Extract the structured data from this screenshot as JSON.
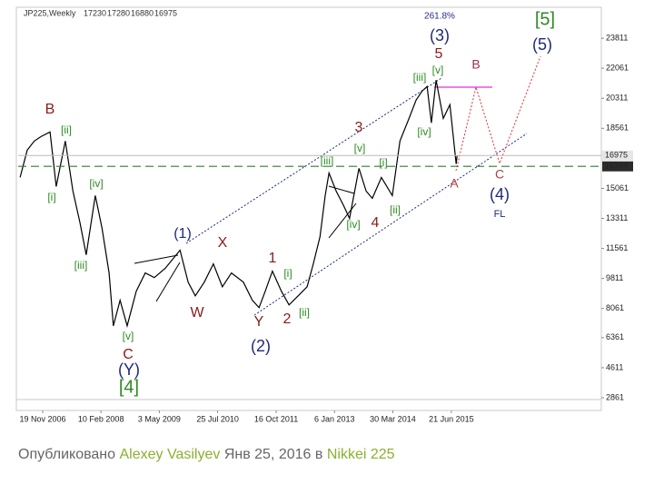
{
  "chart_data": {
    "type": "line",
    "header": {
      "symbol": "JP225,Weekly",
      "ohlc": [
        17230,
        17280,
        16880,
        16975
      ]
    },
    "color": "#000000",
    "x": [
      2006.41,
      2006.56,
      2006.71,
      2006.85,
      2007.04,
      2007.17,
      2007.36,
      2007.52,
      2007.67,
      2007.8,
      2007.99,
      2008.13,
      2008.28,
      2008.37,
      2008.51,
      2008.66,
      2008.85,
      2009.04,
      2009.23,
      2009.46,
      2009.77,
      2009.94,
      2010.09,
      2010.28,
      2010.47,
      2010.66,
      2010.85,
      2011.1,
      2011.29,
      2011.43,
      2011.56,
      2011.71,
      2011.9,
      2012.06,
      2012.25,
      2012.44,
      2012.57,
      2012.71,
      2012.82,
      2012.9,
      2013.05,
      2013.2,
      2013.33,
      2013.53,
      2013.68,
      2013.81,
      2014.0,
      2014.23,
      2014.39,
      2014.58,
      2014.73,
      2014.86,
      2014.96,
      2015.05,
      2015.15,
      2015.3,
      2015.44,
      2015.57,
      2015.59
    ],
    "values": [
      15700,
      17290,
      17820,
      18080,
      18350,
      15170,
      17820,
      14900,
      13050,
      11190,
      14640,
      12780,
      10130,
      7050,
      8540,
      7050,
      9070,
      10130,
      9860,
      10400,
      11460,
      9600,
      8800,
      9600,
      10660,
      9330,
      10130,
      9600,
      8540,
      8110,
      9070,
      10240,
      9070,
      8270,
      8800,
      9330,
      10660,
      12250,
      14640,
      15960,
      14900,
      14100,
      13310,
      16230,
      14900,
      14480,
      15700,
      14640,
      17820,
      19140,
      20210,
      20740,
      21000,
      18880,
      21370,
      19140,
      19940,
      16490,
      16975
    ],
    "xlim": [
      2006.37,
      2018.62
    ],
    "ylim": [
      2755,
      25510
    ],
    "xticks": [
      {
        "value": 2006.885,
        "label": "19 Nov 2006"
      },
      {
        "value": 2008.11,
        "label": "10 Feb 2008"
      },
      {
        "value": 2009.335,
        "label": "3 May 2009"
      },
      {
        "value": 2010.56,
        "label": "25 Jul 2010"
      },
      {
        "value": 2011.79,
        "label": "16 Oct 2011"
      },
      {
        "value": 2013.015,
        "label": "6 Jan 2013"
      },
      {
        "value": 2014.24,
        "label": "30 Mar 2014"
      },
      {
        "value": 2015.47,
        "label": "21 Jun 2015"
      }
    ],
    "yticks": [
      23811,
      22061,
      20311,
      18561,
      15061,
      13311,
      11561,
      9811,
      8061,
      6361,
      4611,
      2861
    ],
    "price_labels": [
      {
        "value": 16975,
        "bg": "#e6e6e6",
        "fg": "#000000",
        "line": "#bbbbbb"
      },
      {
        "value": 16344,
        "bg": "#2b2b2b",
        "fg": "#ffffff",
        "line": "#2e7d32"
      }
    ],
    "annotations": [
      {
        "text": "261.8%",
        "color": "#1f2a8a"
      },
      {
        "text": "(3)",
        "color": "#1f2a7a"
      },
      {
        "text": "5",
        "color": "#8b1a1a"
      },
      {
        "text": "[iii]",
        "color": "#2e8b22"
      },
      {
        "text": "[v]",
        "color": "#2e8b22"
      },
      {
        "text": "B",
        "color": "#a0304a"
      },
      {
        "text": "[5]",
        "color": "#2e8b22"
      },
      {
        "text": "(5)",
        "color": "#1f2a7a"
      },
      {
        "text": "3",
        "color": "#8b1a1a"
      },
      {
        "text": "[v]",
        "color": "#2e8b22"
      },
      {
        "text": "[iv]",
        "color": "#2e8b22"
      },
      {
        "text": "[iii]",
        "color": "#2e8b22"
      },
      {
        "text": "[i]",
        "color": "#2e8b22"
      },
      {
        "text": "(4)",
        "color": "#1f2a7a"
      },
      {
        "text": "FL",
        "color": "#1f2a7a"
      },
      {
        "text": "A",
        "color": "#b04040"
      },
      {
        "text": "C",
        "color": "#b04040"
      },
      {
        "text": "[iv]",
        "color": "#2e8b22"
      },
      {
        "text": "4",
        "color": "#8b1a1a"
      },
      {
        "text": "[ii]",
        "color": "#2e8b22"
      },
      {
        "text": "B",
        "color": "#8b1a1a"
      },
      {
        "text": "[ii]",
        "color": "#2e8b22"
      },
      {
        "text": "[i]",
        "color": "#2e8b22"
      },
      {
        "text": "[iv]",
        "color": "#2e8b22"
      },
      {
        "text": "[iii]",
        "color": "#2e8b22"
      },
      {
        "text": "(1)",
        "color": "#1f2a7a"
      },
      {
        "text": "X",
        "color": "#8b1a1a"
      },
      {
        "text": "W",
        "color": "#8b1a1a"
      },
      {
        "text": "1",
        "color": "#8b1a1a"
      },
      {
        "text": "[i]",
        "color": "#2e8b22"
      },
      {
        "text": "Y",
        "color": "#8b1a1a"
      },
      {
        "text": "2",
        "color": "#8b1a1a"
      },
      {
        "text": "[ii]",
        "color": "#2e8b22"
      },
      {
        "text": "(2)",
        "color": "#1f2a7a"
      },
      {
        "text": "[v]",
        "color": "#2e8b22"
      },
      {
        "text": "C",
        "color": "#8b1a1a"
      },
      {
        "text": "(Y)",
        "color": "#1f2a7a"
      },
      {
        "text": "[4]",
        "color": "#2e8b22"
      }
    ]
  },
  "caption": {
    "prefix": "Опубликовано",
    "author": "Alexey Vasilyev",
    "date": "Янв 25, 2016 в",
    "symbol": "Nikkei 225"
  }
}
